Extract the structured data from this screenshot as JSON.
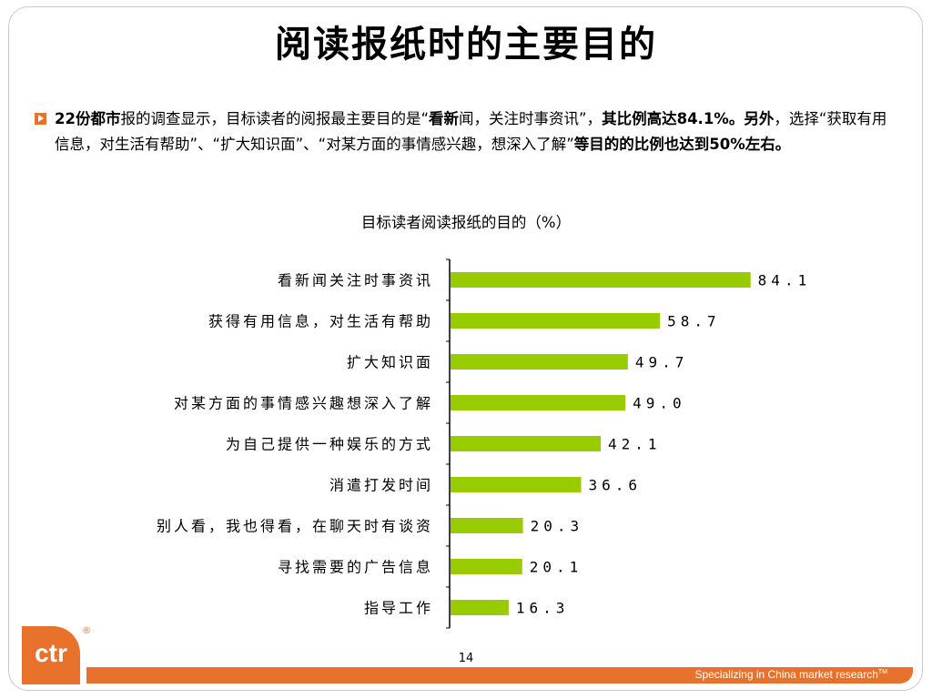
{
  "slide": {
    "title": "阅读报纸时的主要目的",
    "paragraph": {
      "p1": "22份都市",
      "p2": "报的调查显示，目标读者的阅报最主要目的是“",
      "p3": "看新",
      "p4": "闻，关注时事资讯”，",
      "p5": "其比例高达84.1%。另外",
      "p6": "，选择“获取有用信息，对生活有帮助”、“扩大知识面”、“对某方面的事情感兴趣，想深入了解”",
      "p7": "等目的的比例也达到50%左右。"
    },
    "page_number": "14",
    "logo_text": "ctr",
    "registered_mark": "®",
    "footer": {
      "text": "Specializing in China market research",
      "tm": "TM"
    }
  },
  "colors": {
    "bar": "#99cc00",
    "accent": "#e8722c"
  },
  "chart_data": {
    "type": "bar",
    "orientation": "horizontal",
    "title": "目标读者阅读报纸的目的（%）",
    "categories": [
      "看新闻关注时事资讯",
      "获得有用信息，对生活有帮助",
      "扩大知识面",
      "对某方面的事情感兴趣想深入了解",
      "为自己提供一种娱乐的方式",
      "消遣打发时间",
      "别人看，我也得看，在聊天时有谈资",
      "寻找需要的广告信息",
      "指导工作"
    ],
    "values": [
      84.1,
      58.7,
      49.7,
      49.0,
      42.1,
      36.6,
      20.3,
      20.1,
      16.3
    ],
    "value_labels": [
      "84.1",
      "58.7",
      "49.7",
      "49.0",
      "42.1",
      "36.6",
      "20.3",
      "20.1",
      "16.3"
    ],
    "xlim": [
      0,
      100
    ],
    "grid": false,
    "legend": "none"
  }
}
